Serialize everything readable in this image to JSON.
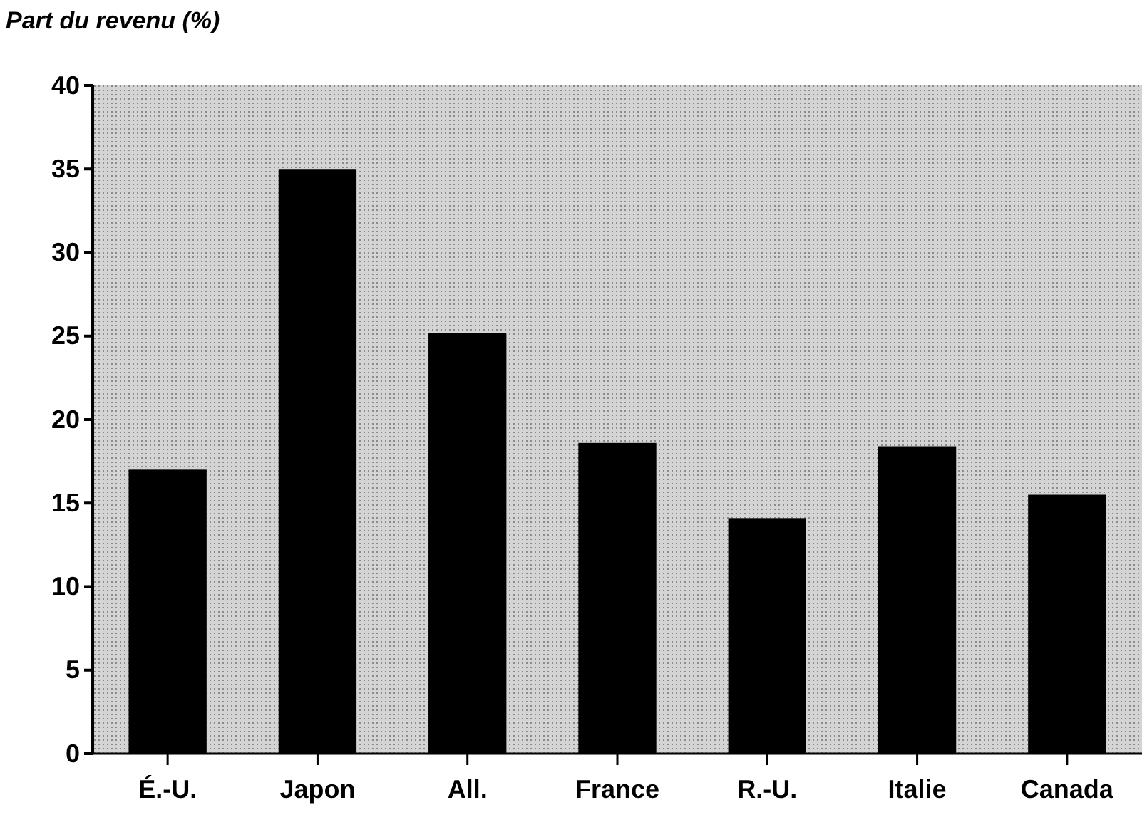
{
  "chart_data": {
    "type": "bar",
    "ylabel": "Part du revenu (%)",
    "categories": [
      "É.-U.",
      "Japon",
      "All.",
      "France",
      "R.-U.",
      "Italie",
      "Canada"
    ],
    "values": [
      17,
      35,
      25.2,
      18.6,
      14.1,
      18.4,
      15.5
    ],
    "color": "#000000",
    "ylim": [
      0,
      40
    ],
    "yticks": [
      0,
      5,
      10,
      15,
      20,
      25,
      30,
      35,
      40
    ],
    "grid": false
  }
}
